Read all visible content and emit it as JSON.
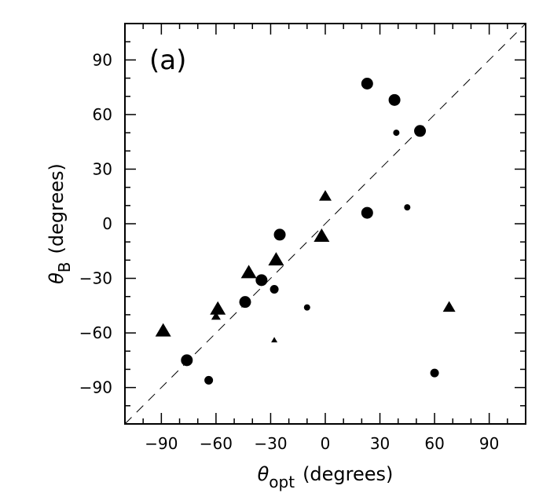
{
  "chart_data": {
    "type": "scatter",
    "panel_label": "(a)",
    "xlabel": {
      "symbol": "θ",
      "subscript": "opt",
      "unit": "(degrees)"
    },
    "ylabel": {
      "symbol": "θ",
      "subscript": "B",
      "unit": "(degrees)"
    },
    "xlim": [
      -110,
      110
    ],
    "ylim": [
      -110,
      110
    ],
    "xticks": [
      -90,
      -60,
      -30,
      0,
      30,
      60,
      90
    ],
    "yticks": [
      -90,
      -60,
      -30,
      0,
      30,
      60,
      90
    ],
    "minor_tick_step": 10,
    "grid": false,
    "reference_line": {
      "type": "y=x",
      "style": "dashed"
    },
    "marker_color": "#000000",
    "points": [
      {
        "x": 23,
        "y": 77,
        "marker": "circle",
        "size": 3
      },
      {
        "x": 38,
        "y": 68,
        "marker": "circle",
        "size": 3
      },
      {
        "x": 39,
        "y": 50,
        "marker": "circle",
        "size": 1
      },
      {
        "x": 52,
        "y": 51,
        "marker": "circle",
        "size": 3
      },
      {
        "x": 23,
        "y": 6,
        "marker": "circle",
        "size": 3
      },
      {
        "x": 45,
        "y": 9,
        "marker": "circle",
        "size": 1
      },
      {
        "x": -25,
        "y": -6,
        "marker": "circle",
        "size": 3
      },
      {
        "x": -35,
        "y": -31,
        "marker": "circle",
        "size": 3
      },
      {
        "x": -28,
        "y": -36,
        "marker": "circle",
        "size": 2
      },
      {
        "x": -44,
        "y": -43,
        "marker": "circle",
        "size": 3
      },
      {
        "x": -10,
        "y": -46,
        "marker": "circle",
        "size": 1
      },
      {
        "x": -76,
        "y": -75,
        "marker": "circle",
        "size": 3
      },
      {
        "x": -64,
        "y": -86,
        "marker": "circle",
        "size": 2
      },
      {
        "x": 60,
        "y": -82,
        "marker": "circle",
        "size": 2
      },
      {
        "x": 0,
        "y": 15,
        "marker": "triangle",
        "size": 2
      },
      {
        "x": -2,
        "y": -7,
        "marker": "triangle",
        "size": 3
      },
      {
        "x": -27,
        "y": -20,
        "marker": "triangle",
        "size": 3
      },
      {
        "x": -42,
        "y": -27,
        "marker": "triangle",
        "size": 3
      },
      {
        "x": -59,
        "y": -47,
        "marker": "triangle",
        "size": 3
      },
      {
        "x": -60,
        "y": -51,
        "marker": "triangle",
        "size": 1
      },
      {
        "x": -89,
        "y": -59,
        "marker": "triangle",
        "size": 3
      },
      {
        "x": -28,
        "y": -64,
        "marker": "triangle",
        "size": 0
      },
      {
        "x": 68,
        "y": -46,
        "marker": "triangle",
        "size": 2
      }
    ]
  }
}
